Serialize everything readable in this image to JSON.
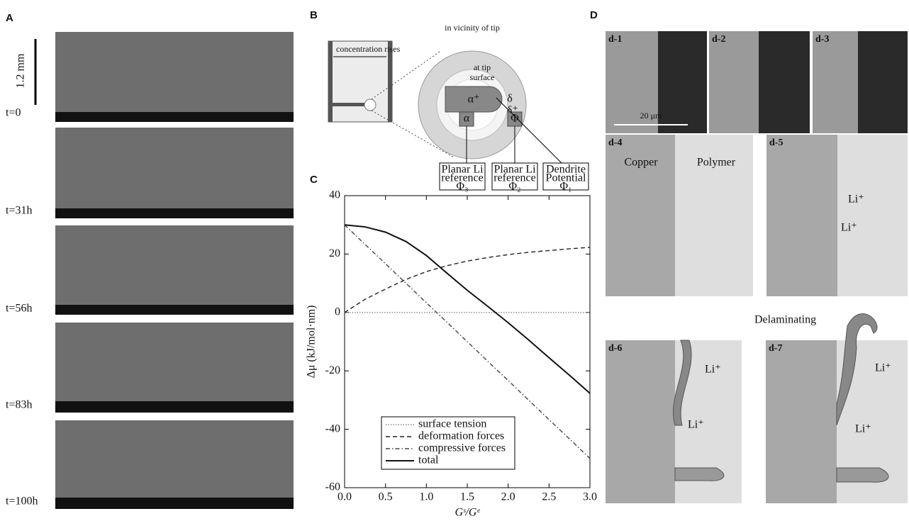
{
  "panels": {
    "a": "A",
    "b": "B",
    "c": "C",
    "d": "D"
  },
  "panel_a": {
    "scale_bar": "1.2 mm",
    "times": [
      "t=0",
      "t=31h",
      "t=56h",
      "t=83h",
      "t=100h"
    ]
  },
  "panel_b": {
    "concentration": "concentration rises",
    "vicinity": "in vicinity of tip",
    "tip_1": "at tip",
    "tip_2": "surface",
    "alpha_plus": "α⁺",
    "delta": "δ",
    "delta_plus": "δ⁺",
    "alpha": "α",
    "phi": "Φ",
    "references": [
      [
        "Planar Li",
        "reference",
        "Φ₃"
      ],
      [
        "Planar Li",
        "reference",
        "Φ₂"
      ],
      [
        "Dendrite",
        "Potential",
        "Φ₁"
      ]
    ]
  },
  "chart_data": {
    "type": "line",
    "xlabel": "Gˢ/Gᵉ",
    "ylabel": "Δμ (kJ/mol·nm)",
    "x": [
      0,
      0.25,
      0.5,
      0.75,
      1,
      1.25,
      1.5,
      1.75,
      2,
      2.25,
      2.5,
      2.75,
      3
    ],
    "series": [
      {
        "name": "surface tension",
        "color": "#888888",
        "linestyle": "dotted",
        "values": [
          0,
          0,
          0,
          0,
          0,
          0,
          0,
          0,
          0,
          0,
          0,
          0,
          0
        ]
      },
      {
        "name": "deformation forces",
        "color": "#222222",
        "linestyle": "dashed",
        "values": [
          0,
          4.5,
          8,
          11.3,
          14,
          16,
          17.6,
          18.8,
          19.8,
          20.6,
          21.2,
          21.8,
          22.3
        ]
      },
      {
        "name": "compressive forces",
        "color": "#444444",
        "linestyle": "dashdot",
        "values": [
          30,
          23.3,
          16.7,
          10,
          3.3,
          -3.3,
          -10,
          -16.7,
          -23.3,
          -30,
          -36.7,
          -43.3,
          -50
        ]
      },
      {
        "name": "total",
        "color": "#111111",
        "linestyle": "solid",
        "values": [
          30,
          29.3,
          27.5,
          24.3,
          19.5,
          13.5,
          7.6,
          2.1,
          -3.5,
          -9.4,
          -15.5,
          -21.5,
          -27.7
        ]
      }
    ],
    "xlim": [
      0,
      3
    ],
    "ylim": [
      -60,
      40
    ],
    "xticks": [
      {
        "value": 0,
        "label": "0.0"
      },
      0.5,
      {
        "value": 1,
        "label": "1.0"
      },
      1.5,
      {
        "value": 2,
        "label": "2.0"
      },
      2.5,
      {
        "value": 3,
        "label": "3.0"
      }
    ],
    "yticks": [
      -60,
      -40,
      -20,
      0,
      20,
      40
    ],
    "legend": "lower left"
  },
  "panel_d": {
    "labels": [
      "d-1",
      "d-2",
      "d-3",
      "d-4",
      "d-5",
      "d-6",
      "d-7"
    ],
    "scale": "20 μm",
    "copper": "Copper",
    "polymer": "Polymer",
    "li_ion": "Li⁺",
    "delaminating": "Delaminating"
  }
}
